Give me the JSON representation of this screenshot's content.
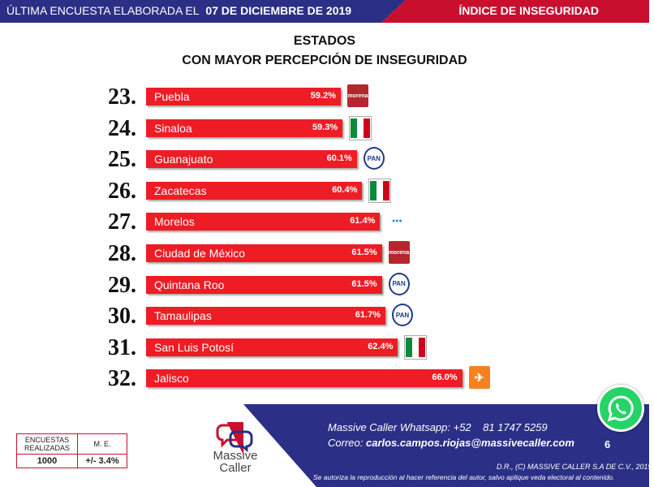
{
  "header": {
    "left_prefix": "ÚLTIMA ENCUESTA ELABORADA EL",
    "left_date": "07 DE DICIEMBRE DE 2019",
    "right_title": "ÍNDICE DE INSEGURIDAD"
  },
  "chart_data": {
    "type": "bar",
    "title": "ESTADOS",
    "subtitle": "CON MAYOR PERCEPCIÓN DE INSEGURIDAD",
    "orientation": "horizontal",
    "ranks": [
      "23.",
      "24.",
      "25.",
      "26.",
      "27.",
      "28.",
      "29.",
      "30.",
      "31.",
      "32."
    ],
    "categories": [
      "Puebla",
      "Sinaloa",
      "Guanajuato",
      "Zacatecas",
      "Morelos",
      "Ciudad de México",
      "Quintana Roo",
      "Tamaulipas",
      "San Luis Potosí",
      "Jalisco"
    ],
    "values": [
      59.2,
      59.3,
      60.1,
      60.4,
      61.4,
      61.5,
      61.5,
      61.7,
      62.4,
      66.0
    ],
    "value_labels": [
      "59.2%",
      "59.3%",
      "60.1%",
      "60.4%",
      "61.4%",
      "61.5%",
      "61.5%",
      "61.7%",
      "62.4%",
      "66.0%"
    ],
    "party_logos": [
      "morena",
      "pri",
      "pan",
      "pri",
      "pes",
      "morena",
      "pan",
      "pan",
      "pri",
      "mc"
    ],
    "bar_color": "#ee1c25"
  },
  "logo_text": {
    "morena": "morena",
    "pan": "PAN"
  },
  "footer": {
    "table_header_1": "ENCUESTAS REALIZADAS",
    "table_header_2": "M. E.",
    "table_value_1": "1000",
    "table_value_2": "+/- 3.4%",
    "brand_line1": "Massive",
    "brand_line2": "Caller",
    "whatsapp_line": "Massive Caller Whatsapp: +52    81 1747 5259",
    "email_prefix": "Correo:",
    "email": "carlos.campos.riojas@massivecaller.com",
    "page": "6",
    "copyright": "D.R., (C) MASSIVE CALLER S.A DE C.V., 2019.",
    "disclaimer": "Se autoriza la reproducción al hacer referencia del autor, salvo aplique veda electoral al contenido."
  },
  "colors": {
    "header_blue": "#2b2f86",
    "header_red": "#c8102e",
    "whatsapp_green": "#25d366"
  }
}
